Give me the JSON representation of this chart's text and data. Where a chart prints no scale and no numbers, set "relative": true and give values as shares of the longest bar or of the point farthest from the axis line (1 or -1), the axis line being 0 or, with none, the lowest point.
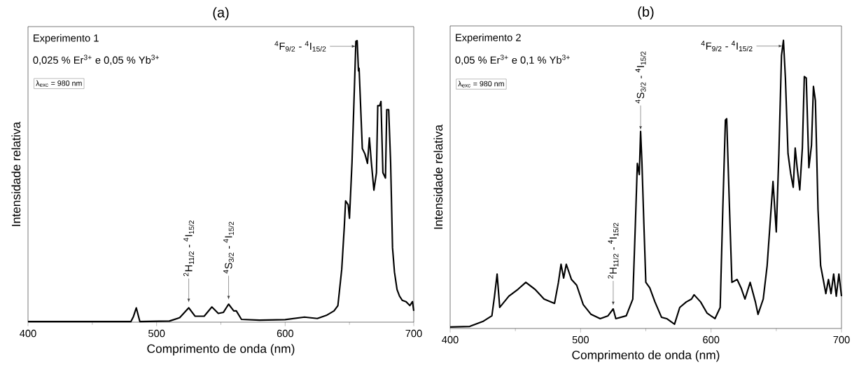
{
  "chart_data": [
    {
      "type": "line",
      "title": "(a)",
      "xlabel": "Comprimento de onda (nm)",
      "ylabel": "Intensidade relativa",
      "relative": true,
      "color": "#000000",
      "xlim": [
        400,
        700
      ],
      "xticks": [
        400,
        500,
        600,
        700
      ],
      "x": [
        400,
        480,
        482,
        484.2,
        487,
        510,
        518,
        525,
        530,
        537,
        543,
        548,
        552,
        556,
        560,
        562,
        566,
        580,
        600,
        615,
        625,
        632,
        638,
        641,
        644,
        646,
        647,
        649,
        650,
        652,
        654,
        655,
        656,
        657,
        657.5,
        660,
        662,
        664,
        665.5,
        667,
        669,
        671,
        672,
        673.5,
        674.5,
        676,
        678,
        679,
        680.5,
        682,
        683.5,
        685,
        687,
        689,
        691,
        694,
        697,
        699,
        700
      ],
      "values": [
        0.002,
        0.002,
        0.02,
        0.051,
        0.002,
        0.004,
        0.016,
        0.051,
        0.021,
        0.021,
        0.054,
        0.031,
        0.035,
        0.064,
        0.04,
        0.04,
        0.01,
        0.007,
        0.009,
        0.018,
        0.013,
        0.024,
        0.04,
        0.059,
        0.188,
        0.34,
        0.431,
        0.417,
        0.369,
        0.569,
        0.855,
        0.998,
        1,
        0.893,
        0.902,
        0.617,
        0.598,
        0.564,
        0.655,
        0.569,
        0.469,
        0.531,
        0.769,
        0.769,
        0.784,
        0.531,
        0.512,
        0.755,
        0.755,
        0.569,
        0.264,
        0.178,
        0.116,
        0.092,
        0.078,
        0.073,
        0.059,
        0.073,
        0.04
      ],
      "annotations": [
        "Experimento 1",
        "0,025 % Er$^{3+}$ e 0,05 % Yb$^{3+}$",
        "λ$_{exc}$ = 980 nm",
        {
          "text": "$^{4}$F$_{9/2}$ - $^{4}$I$_{15/2}$",
          "x": 654.8,
          "y": 0.98
        },
        {
          "text": "$^{2}$H$_{11/2}$ - $^{4}$I$_{15/2}$",
          "x": 525,
          "y": 0.065
        },
        {
          "text": "$^{4}$S$_{3/2}$ - $^{4}$I$_{15/2}$",
          "x": 556,
          "y": 0.075
        }
      ]
    },
    {
      "type": "line",
      "title": "(b)",
      "xlabel": "Comprimento de onda (nm)",
      "ylabel": "Intensidade relativa",
      "relative": true,
      "color": "#000000",
      "xlim": [
        400,
        700
      ],
      "xticks": [
        400,
        500,
        600,
        700
      ],
      "x": [
        400,
        415,
        425,
        432,
        434,
        436,
        438,
        445,
        452,
        458,
        465,
        472,
        480,
        483,
        485,
        487,
        489,
        493,
        497,
        502,
        508,
        515,
        521,
        525,
        527,
        535,
        540,
        542,
        543.5,
        545,
        546,
        547,
        548.5,
        550,
        553,
        557,
        562,
        566,
        572,
        576,
        581,
        585,
        587,
        592,
        597,
        603,
        607,
        609,
        611,
        612,
        614,
        616,
        620,
        623,
        626,
        630,
        634,
        636,
        640,
        643,
        646,
        647.5,
        650,
        652,
        654,
        655.5,
        657,
        659,
        661,
        663,
        664.5,
        666,
        668,
        670,
        671.5,
        673,
        675,
        677,
        678.5,
        680,
        682,
        684,
        686,
        688,
        690,
        692,
        694,
        696,
        698,
        700
      ],
      "values": [
        0.005,
        0.007,
        0.024,
        0.044,
        0.112,
        0.189,
        0.073,
        0.112,
        0.136,
        0.16,
        0.136,
        0.102,
        0.087,
        0.16,
        0.223,
        0.175,
        0.223,
        0.17,
        0.15,
        0.083,
        0.049,
        0.034,
        0.044,
        0.068,
        0.034,
        0.044,
        0.102,
        0.364,
        0.573,
        0.534,
        0.684,
        0.578,
        0.364,
        0.16,
        0.141,
        0.092,
        0.039,
        0.034,
        0.015,
        0.073,
        0.092,
        0.102,
        0.117,
        0.092,
        0.053,
        0.034,
        0.073,
        0.413,
        0.723,
        0.728,
        0.437,
        0.16,
        0.17,
        0.141,
        0.102,
        0.16,
        0.092,
        0.049,
        0.102,
        0.218,
        0.413,
        0.51,
        0.335,
        0.607,
        0.947,
        1,
        0.869,
        0.607,
        0.539,
        0.49,
        0.626,
        0.558,
        0.481,
        0.626,
        0.874,
        0.869,
        0.558,
        0.636,
        0.84,
        0.791,
        0.413,
        0.218,
        0.17,
        0.121,
        0.17,
        0.121,
        0.189,
        0.112,
        0.189,
        0.112
      ],
      "annotations": [
        "Experimento 2",
        "0,05 % Er$^{3+}$ e 0,1 % Yb$^{3+}$",
        "λ$_{exc}$ = 980 nm",
        {
          "text": "$^{4}$F$_{9/2}$ - $^{4}$I$_{15/2}$",
          "x": 654.8,
          "y": 0.98
        },
        {
          "text": "$^{2}$H$_{11/2}$ - $^{4}$I$_{15/2}$",
          "x": 525,
          "y": 0.075
        },
        {
          "text": "$^{4}$S$_{3/2}$ - $^{4}$I$_{15/2}$",
          "x": 546,
          "y": 0.684
        }
      ]
    }
  ]
}
